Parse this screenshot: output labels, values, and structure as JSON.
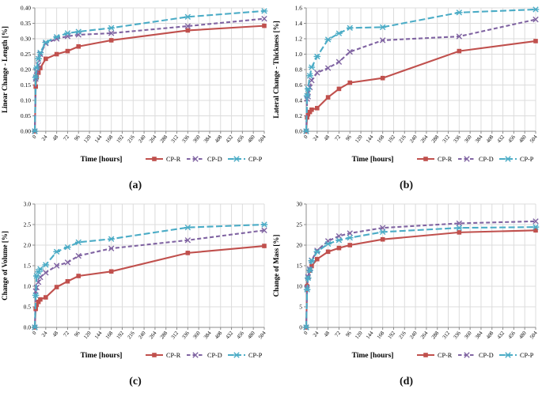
{
  "figure": {
    "x_axis_title": "Time [hours]",
    "x_max": 504,
    "x_ticks": [
      0,
      24,
      48,
      72,
      96,
      120,
      144,
      168,
      192,
      216,
      240,
      264,
      288,
      312,
      336,
      360,
      384,
      408,
      432,
      456,
      480,
      504
    ],
    "legend": [
      "CP-R",
      "CP-D",
      "CP-P"
    ],
    "colors": {
      "cp_r": "#C0504D",
      "cp_d": "#8064A2",
      "cp_p": "#4BACC6",
      "grid": "#DCDCDC",
      "axis": "#8C8C8C",
      "text": "#000000"
    }
  },
  "chart_data": [
    {
      "type": "line",
      "caption": "(a)",
      "ylabel": "Linear Change - Length [%]",
      "xlabel": "Time [hours]",
      "ylim": [
        0,
        0.4
      ],
      "ytick_step": 0.05,
      "y_decimals": 2,
      "grid": true,
      "legend_position": "bottom",
      "x": [
        0,
        2,
        4,
        8,
        12,
        24,
        48,
        72,
        96,
        168,
        336,
        504
      ],
      "series": [
        {
          "name": "CP-R",
          "color": "#C0504D",
          "line": "solid",
          "marker": "square",
          "values": [
            0,
            0.145,
            0.175,
            0.19,
            0.205,
            0.235,
            0.25,
            0.26,
            0.275,
            0.295,
            0.327,
            0.342
          ]
        },
        {
          "name": "CP-D",
          "color": "#8064A2",
          "line": "dashed",
          "marker": "x",
          "values": [
            0,
            0.17,
            0.195,
            0.215,
            0.25,
            0.285,
            0.3,
            0.308,
            0.313,
            0.318,
            0.341,
            0.365
          ]
        },
        {
          "name": "CP-P",
          "color": "#4BACC6",
          "line": "dashed",
          "marker": "star",
          "values": [
            0,
            0.175,
            0.205,
            0.235,
            0.255,
            0.288,
            0.306,
            0.318,
            0.323,
            0.335,
            0.371,
            0.39
          ]
        }
      ]
    },
    {
      "type": "line",
      "caption": "(b)",
      "ylabel": "Lateral Change - Thickness [%]",
      "xlabel": "Time [hours]",
      "ylim": [
        0,
        1.6
      ],
      "ytick_step": 0.2,
      "y_decimals": 1,
      "grid": true,
      "legend_position": "bottom",
      "x": [
        0,
        2,
        4,
        8,
        12,
        24,
        48,
        72,
        96,
        168,
        336,
        504
      ],
      "series": [
        {
          "name": "CP-R",
          "color": "#C0504D",
          "line": "solid",
          "marker": "square",
          "values": [
            0,
            0.18,
            0.22,
            0.25,
            0.28,
            0.3,
            0.44,
            0.55,
            0.63,
            0.69,
            1.04,
            1.17
          ]
        },
        {
          "name": "CP-D",
          "color": "#8064A2",
          "line": "dashed",
          "marker": "x",
          "values": [
            0,
            0.42,
            0.45,
            0.57,
            0.66,
            0.76,
            0.82,
            0.9,
            1.03,
            1.18,
            1.23,
            1.45
          ]
        },
        {
          "name": "CP-P",
          "color": "#4BACC6",
          "line": "dashed",
          "marker": "star",
          "values": [
            0,
            0.46,
            0.55,
            0.72,
            0.83,
            0.97,
            1.19,
            1.27,
            1.34,
            1.35,
            1.54,
            1.58
          ]
        }
      ]
    },
    {
      "type": "line",
      "caption": "(c)",
      "ylabel": "Change of Volume [%]",
      "xlabel": "Time [hours]",
      "ylim": [
        0,
        3.0
      ],
      "ytick_step": 0.5,
      "y_decimals": 1,
      "grid": true,
      "legend_position": "bottom",
      "x": [
        0,
        2,
        4,
        8,
        12,
        24,
        48,
        72,
        96,
        168,
        336,
        504
      ],
      "series": [
        {
          "name": "CP-R",
          "color": "#C0504D",
          "line": "solid",
          "marker": "square",
          "values": [
            0,
            0.45,
            0.55,
            0.62,
            0.68,
            0.73,
            0.98,
            1.12,
            1.25,
            1.36,
            1.81,
            1.98
          ]
        },
        {
          "name": "CP-D",
          "color": "#8064A2",
          "line": "dashed",
          "marker": "x",
          "values": [
            0,
            0.88,
            0.97,
            1.1,
            1.22,
            1.33,
            1.5,
            1.58,
            1.74,
            1.92,
            2.12,
            2.36
          ]
        },
        {
          "name": "CP-P",
          "color": "#4BACC6",
          "line": "dashed",
          "marker": "star",
          "values": [
            0,
            0.78,
            1.25,
            1.35,
            1.42,
            1.52,
            1.84,
            1.95,
            2.07,
            2.15,
            2.43,
            2.5
          ]
        }
      ]
    },
    {
      "type": "line",
      "caption": "(d)",
      "ylabel": "Change of Mass [%]",
      "xlabel": "Time [hours]",
      "ylim": [
        0,
        30
      ],
      "ytick_step": 5,
      "y_decimals": 0,
      "grid": true,
      "legend_position": "bottom",
      "x": [
        0,
        2,
        4,
        8,
        12,
        24,
        48,
        72,
        96,
        168,
        336,
        504
      ],
      "series": [
        {
          "name": "CP-R",
          "color": "#C0504D",
          "line": "solid",
          "marker": "square",
          "values": [
            0,
            10.0,
            12.2,
            13.8,
            14.9,
            16.6,
            18.4,
            19.3,
            20.0,
            21.4,
            23.1,
            23.6
          ]
        },
        {
          "name": "CP-D",
          "color": "#8064A2",
          "line": "dashed",
          "marker": "x",
          "values": [
            0,
            9.6,
            12.3,
            14.2,
            16.3,
            18.7,
            21.0,
            22.2,
            22.9,
            24.2,
            25.3,
            25.8
          ]
        },
        {
          "name": "CP-P",
          "color": "#4BACC6",
          "line": "dashed",
          "marker": "star",
          "values": [
            0,
            9.2,
            12.0,
            13.9,
            16.2,
            18.4,
            20.3,
            21.2,
            21.8,
            23.2,
            24.2,
            24.4
          ]
        }
      ]
    }
  ]
}
